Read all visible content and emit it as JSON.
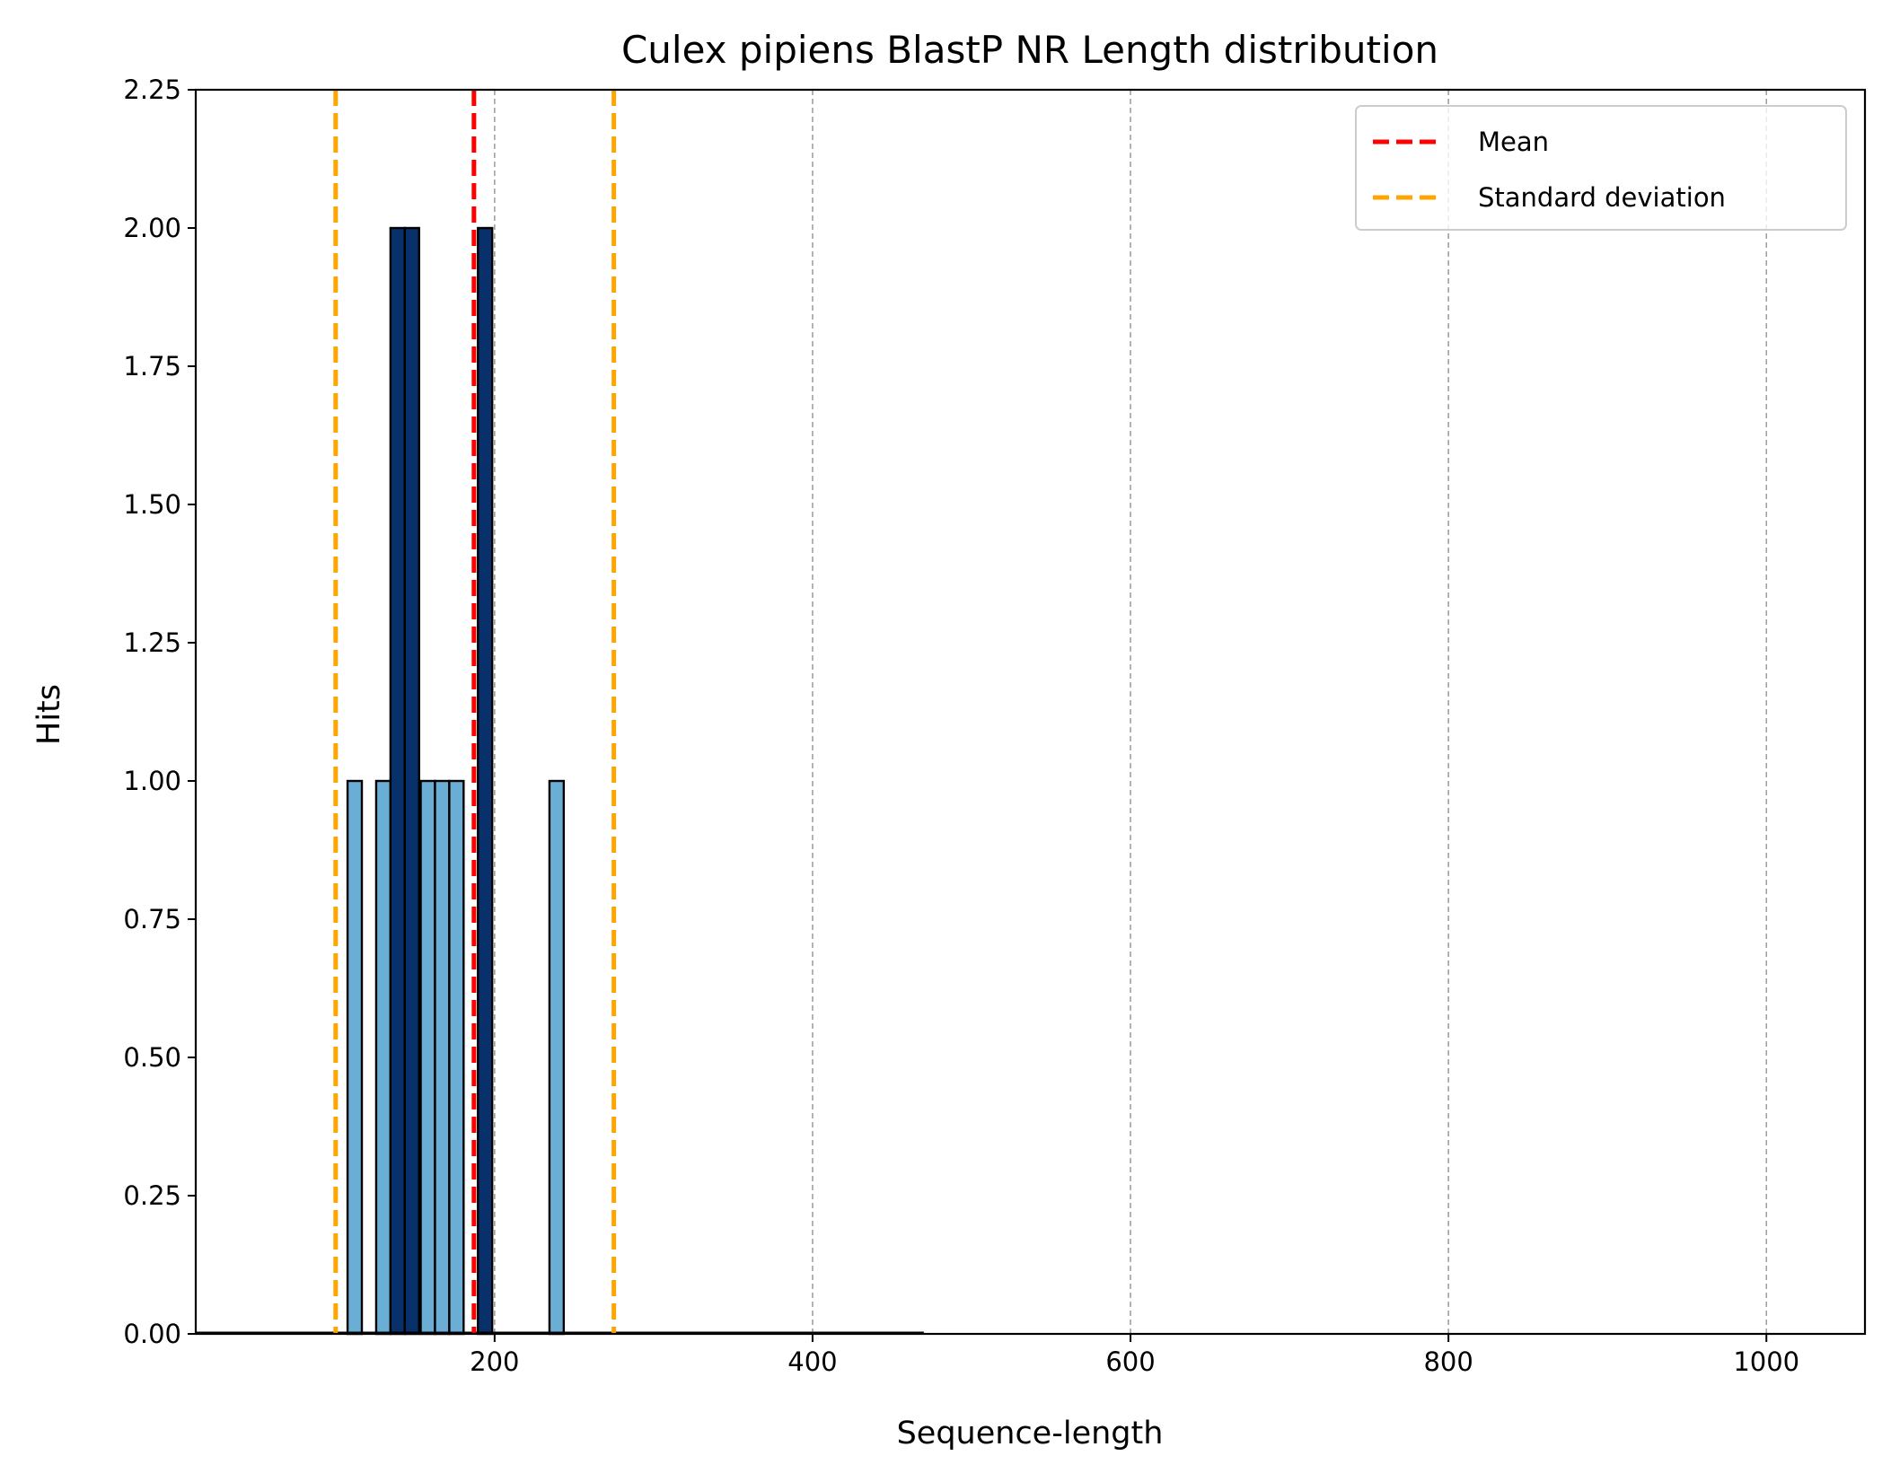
{
  "chart_data": {
    "type": "bar",
    "title": "Culex pipiens BlastP NR Length distribution",
    "xlabel": "Sequence-length",
    "ylabel": "Hits",
    "xlim": [
      12,
      1062
    ],
    "ylim": [
      0,
      2.25
    ],
    "xticks": [
      200,
      400,
      600,
      800,
      1000
    ],
    "yticks": [
      0,
      0.25,
      0.5,
      0.75,
      1.0,
      1.25,
      1.5,
      1.75,
      2.0,
      2.25
    ],
    "ytick_labels": [
      "0.00",
      "0.25",
      "0.50",
      "0.75",
      "1.00",
      "1.25",
      "1.50",
      "1.75",
      "2.00",
      "2.25"
    ],
    "grid": "x-dashed",
    "bin_width": 9,
    "series": [
      {
        "color": "#6aaed6",
        "bars": [
          {
            "x": 112,
            "value": 1
          },
          {
            "x": 130,
            "value": 1
          },
          {
            "x": 158,
            "value": 1
          },
          {
            "x": 167,
            "value": 1
          },
          {
            "x": 176,
            "value": 1
          },
          {
            "x": 239,
            "value": 1
          }
        ]
      },
      {
        "color": "#08306b",
        "bars": [
          {
            "x": 139,
            "value": 2
          },
          {
            "x": 148,
            "value": 2
          },
          {
            "x": 194,
            "value": 2
          }
        ]
      }
    ],
    "baseline_segments": [
      [
        12,
        470
      ]
    ],
    "vlines": [
      {
        "label": "Mean",
        "x": 187,
        "color": "#ff0000"
      },
      {
        "label": "Standard deviation",
        "x": 100,
        "color": "#ffa500"
      },
      {
        "label": "Standard deviation",
        "x": 275,
        "color": "#ffa500"
      }
    ],
    "legend": {
      "position": "top-right",
      "entries": [
        {
          "label": "Mean",
          "color": "#ff0000"
        },
        {
          "label": "Standard deviation",
          "color": "#ffa500"
        }
      ]
    }
  }
}
